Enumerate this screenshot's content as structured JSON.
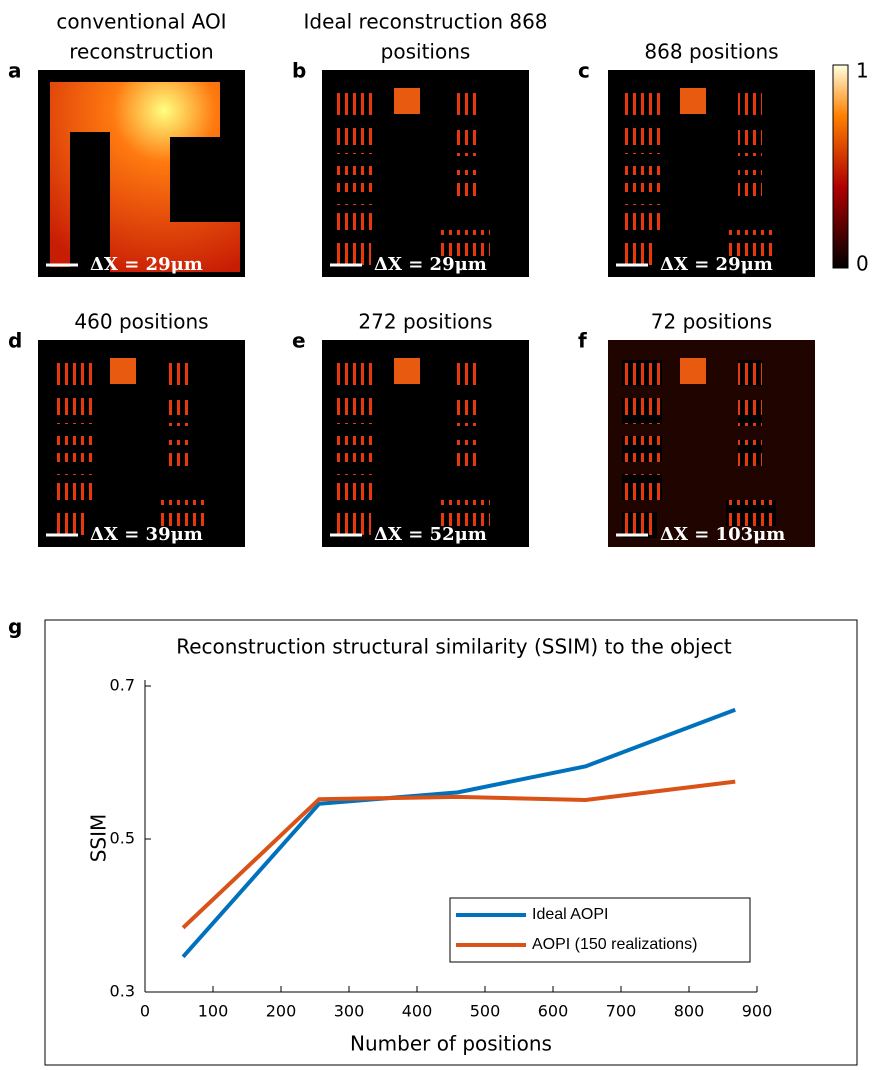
{
  "panels": [
    {
      "label": "a",
      "title_lines": [
        "conventional AOI",
        "reconstruction"
      ],
      "scale": "ΔX = 29μm"
    },
    {
      "label": "b",
      "title_lines": [
        "Ideal reconstruction 868",
        "positions"
      ],
      "scale": "ΔX = 29μm"
    },
    {
      "label": "c",
      "title_lines": [
        "868 positions"
      ],
      "scale": "ΔX = 29μm"
    },
    {
      "label": "d",
      "title_lines": [
        "460 positions"
      ],
      "scale": "ΔX = 39μm"
    },
    {
      "label": "e",
      "title_lines": [
        "272 positions"
      ],
      "scale": "ΔX = 52μm"
    },
    {
      "label": "f",
      "title_lines": [
        "72 positions"
      ],
      "scale": "ΔX = 103μm"
    }
  ],
  "colorbar": {
    "top_label": "1",
    "bottom_label": "0"
  },
  "chart_data": {
    "type": "line",
    "label": "g",
    "title": "Reconstruction structural similarity (SSIM) to the object",
    "x_label": "Number of positions",
    "y_label": "SSIM",
    "x": [
      56,
      256,
      460,
      648,
      868
    ],
    "series": [
      {
        "name": "Ideal AOPI",
        "color": "#0072bd",
        "values": [
          0.346,
          0.546,
          0.561,
          0.595,
          0.669
        ]
      },
      {
        "name": "AOPI (150 realizations)",
        "color": "#d95319",
        "values": [
          0.384,
          0.552,
          0.555,
          0.551,
          0.575
        ]
      }
    ],
    "xlim": [
      0,
      900
    ],
    "xticks": [
      0,
      100,
      200,
      300,
      400,
      500,
      600,
      700,
      800,
      900
    ],
    "ylim": [
      0.3,
      0.7
    ],
    "yticks": [
      0.3,
      0.5,
      0.7
    ],
    "legend": "lower-right"
  }
}
